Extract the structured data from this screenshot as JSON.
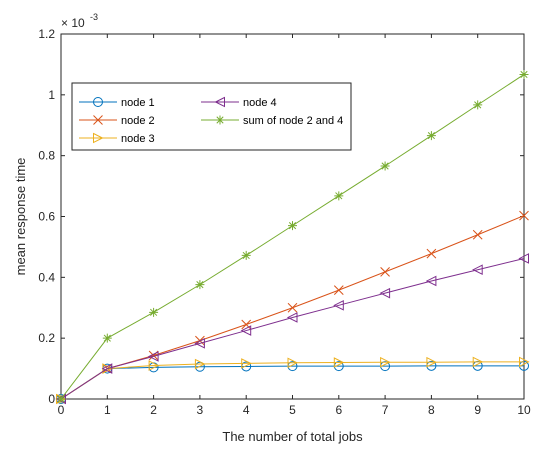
{
  "chart_data": {
    "type": "line",
    "title": "",
    "xlabel": "The number of total jobs",
    "ylabel": "mean response time",
    "y_exponent_label": "× 10",
    "y_exponent_power": "-3",
    "xlim": [
      0,
      10
    ],
    "ylim": [
      0,
      1.2
    ],
    "x_ticks": [
      0,
      1,
      2,
      3,
      4,
      5,
      6,
      7,
      8,
      9,
      10
    ],
    "y_ticks": [
      0,
      0.2,
      0.4,
      0.6,
      0.8,
      1,
      1.2
    ],
    "y_tick_labels": [
      "0",
      "0.2",
      "0.4",
      "0.6",
      "0.8",
      "1",
      "1.2"
    ],
    "grid": false,
    "legend_position": "top-left",
    "x": [
      0,
      1,
      2,
      3,
      4,
      5,
      6,
      7,
      8,
      9,
      10
    ],
    "series": [
      {
        "name": "node 1",
        "color": "#0072bd",
        "marker": "circle",
        "values": [
          0,
          0.1,
          0.104,
          0.106,
          0.107,
          0.108,
          0.108,
          0.108,
          0.109,
          0.109,
          0.109
        ]
      },
      {
        "name": "node 2",
        "color": "#d95319",
        "marker": "x",
        "values": [
          0,
          0.1,
          0.143,
          0.192,
          0.245,
          0.3,
          0.358,
          0.418,
          0.478,
          0.54,
          0.603
        ]
      },
      {
        "name": "node 3",
        "color": "#edb120",
        "marker": "triangle-right",
        "values": [
          0,
          0.1,
          0.11,
          0.115,
          0.117,
          0.119,
          0.12,
          0.121,
          0.121,
          0.122,
          0.122
        ]
      },
      {
        "name": "node 4",
        "color": "#7e2f8e",
        "marker": "triangle-left",
        "values": [
          0,
          0.1,
          0.14,
          0.183,
          0.225,
          0.268,
          0.308,
          0.348,
          0.388,
          0.425,
          0.462
        ]
      },
      {
        "name": "sum of node 2 and 4",
        "color": "#77ac30",
        "marker": "asterisk",
        "values": [
          0,
          0.2,
          0.285,
          0.376,
          0.472,
          0.57,
          0.668,
          0.766,
          0.866,
          0.967,
          1.067
        ]
      }
    ],
    "legend_columns": [
      [
        "node 1",
        "node 2",
        "node 3"
      ],
      [
        "node 4",
        "sum of node 2 and 4"
      ]
    ]
  }
}
